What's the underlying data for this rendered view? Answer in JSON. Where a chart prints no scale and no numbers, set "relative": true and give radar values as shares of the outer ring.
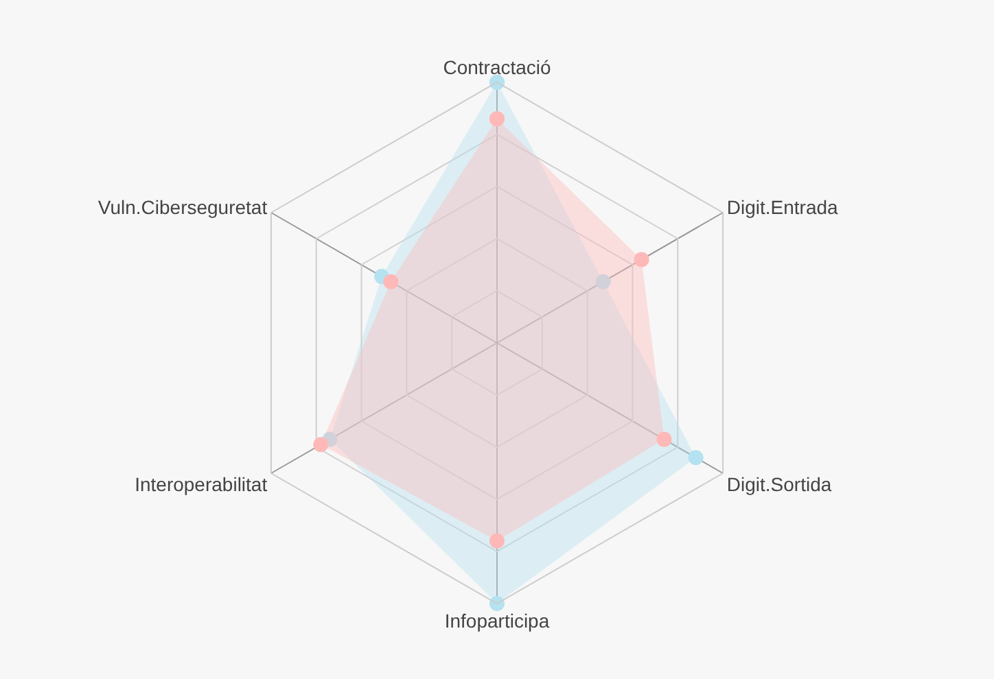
{
  "chart_data": {
    "type": "radar",
    "relative": true,
    "grid": true,
    "marker": "circle",
    "categories": [
      "Contractació",
      "Digit.Entrada",
      "Digit.Sortida",
      "Infoparticipa",
      "Interoperabilitat",
      "Vuln.Ciberseguretat"
    ],
    "series": [
      {
        "color": "#b5e2f0",
        "values": [
          1.0,
          0.47,
          0.88,
          1.0,
          0.74,
          0.51
        ]
      },
      {
        "color": "#ffb8b8",
        "values": [
          0.86,
          0.64,
          0.74,
          0.76,
          0.78,
          0.47
        ]
      }
    ]
  }
}
